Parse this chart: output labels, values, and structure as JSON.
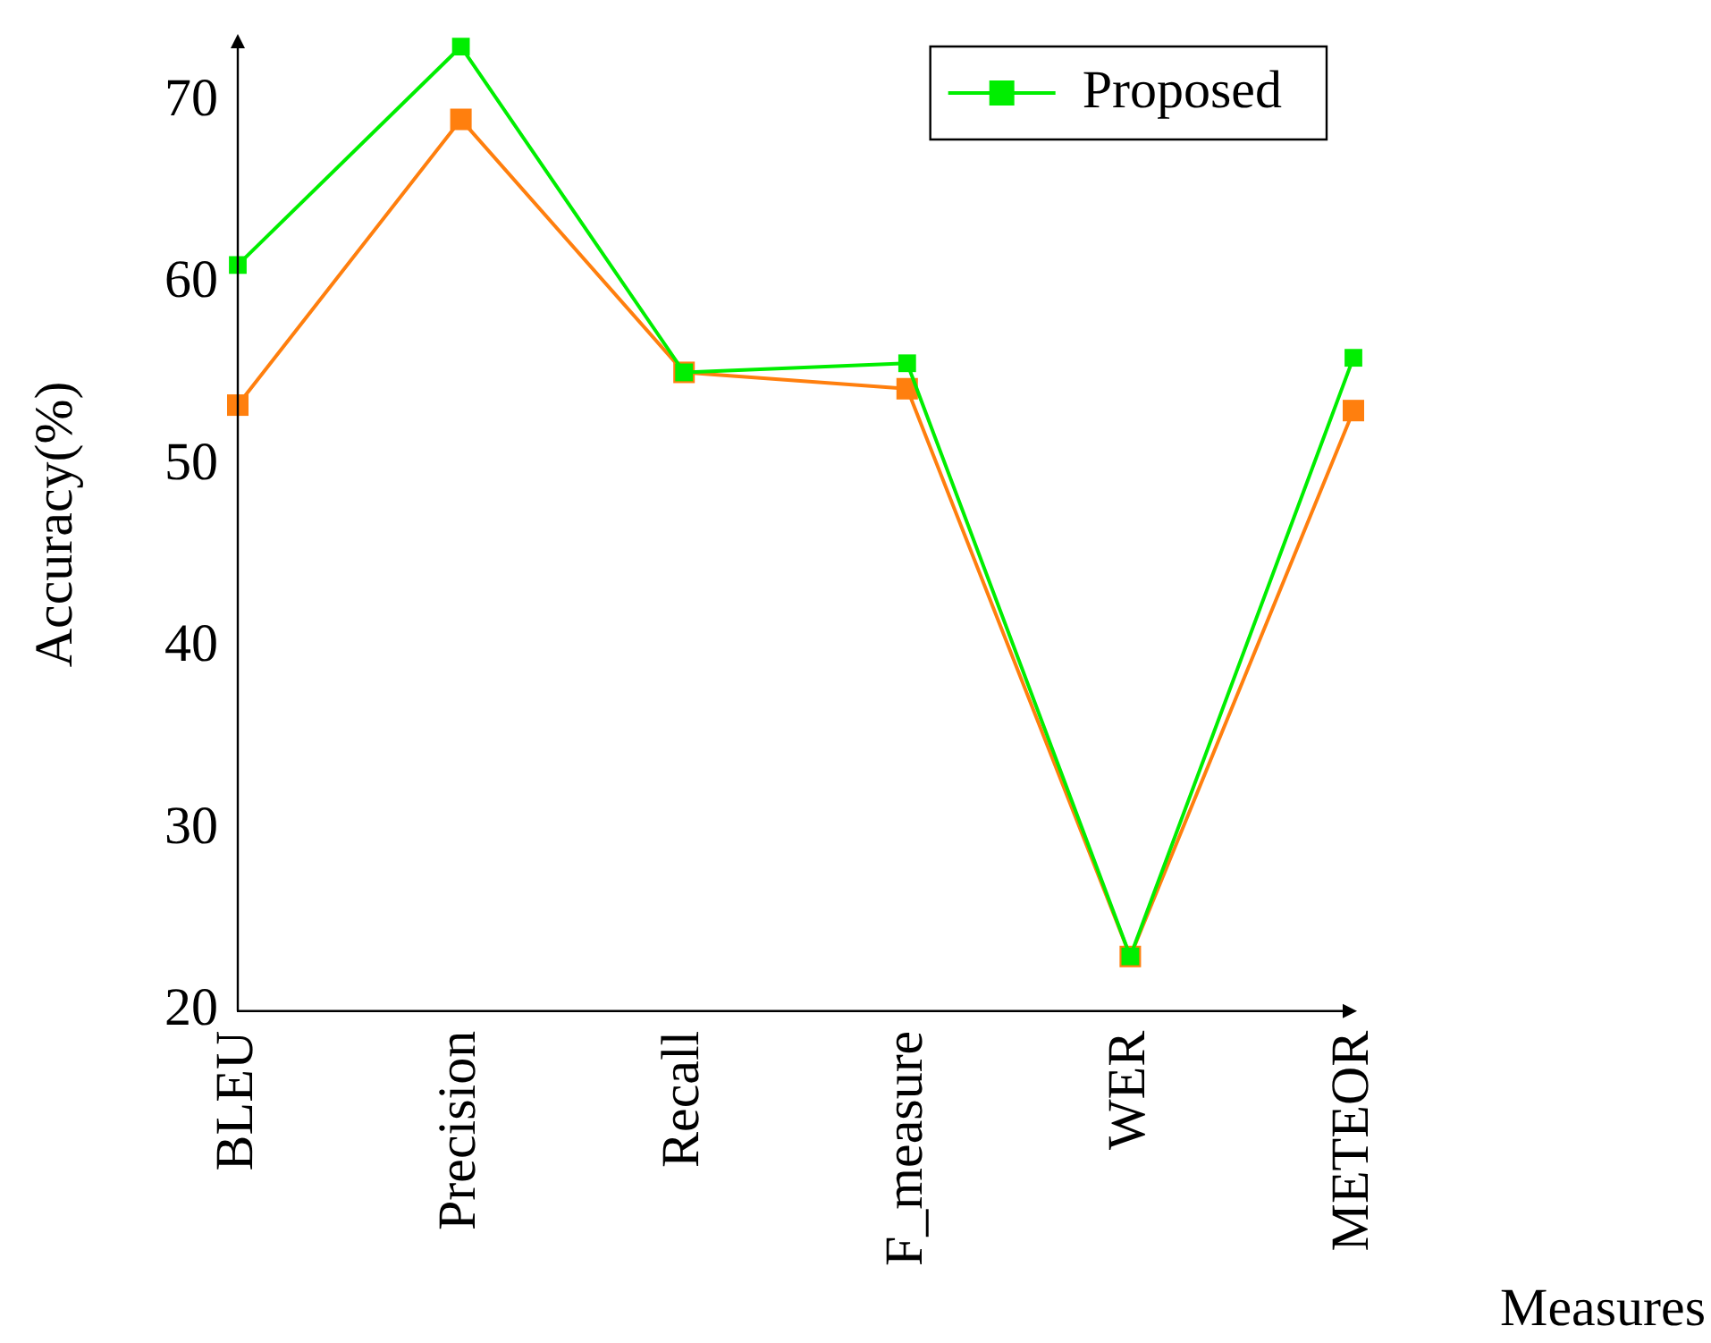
{
  "chart_data": {
    "type": "line",
    "xlabel": "Measures",
    "ylabel": "Accuracy(%)",
    "categories": [
      "BLEU",
      "Precision",
      "Recall",
      "F_measure",
      "WER",
      "METEOR"
    ],
    "series": [
      {
        "color": "#ff7f0e",
        "values": [
          53.3,
          69,
          55.1,
          54.2,
          23,
          53
        ]
      },
      {
        "name": "Proposed",
        "color": "#00ee00",
        "values": [
          61,
          73,
          55.1,
          55.6,
          23,
          55.9
        ]
      }
    ],
    "ylim": [
      20,
      73.5
    ],
    "yticks": [
      20,
      30,
      40,
      50,
      60,
      70
    ],
    "grid": false,
    "legend": "top right",
    "marker": "square",
    "line_style": "solid"
  }
}
